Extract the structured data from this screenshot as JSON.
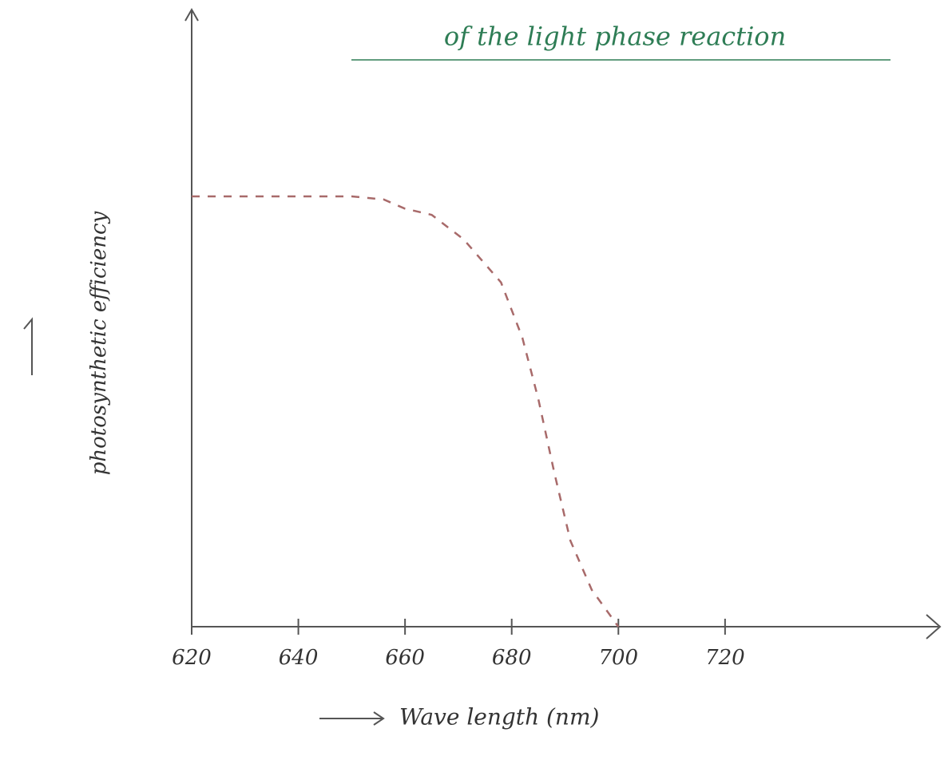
{
  "chart_data": {
    "type": "line",
    "title": "of the light phase reaction",
    "x_label": "Wave length (nm)",
    "y_label": "photosynthetic efficiency",
    "x": [
      620,
      630,
      640,
      650,
      656,
      660,
      665,
      671,
      678,
      682,
      685,
      688,
      691,
      695,
      700
    ],
    "values": [
      70,
      70,
      70,
      70,
      69.5,
      68,
      67,
      63,
      56,
      47,
      37,
      25,
      14,
      6,
      0
    ],
    "color": "#a86a6a",
    "title_color": "#2e7d55",
    "xlim": [
      620,
      760
    ],
    "xticks": [
      620,
      640,
      660,
      680,
      700,
      720
    ],
    "ylim": [
      0,
      100
    ]
  }
}
